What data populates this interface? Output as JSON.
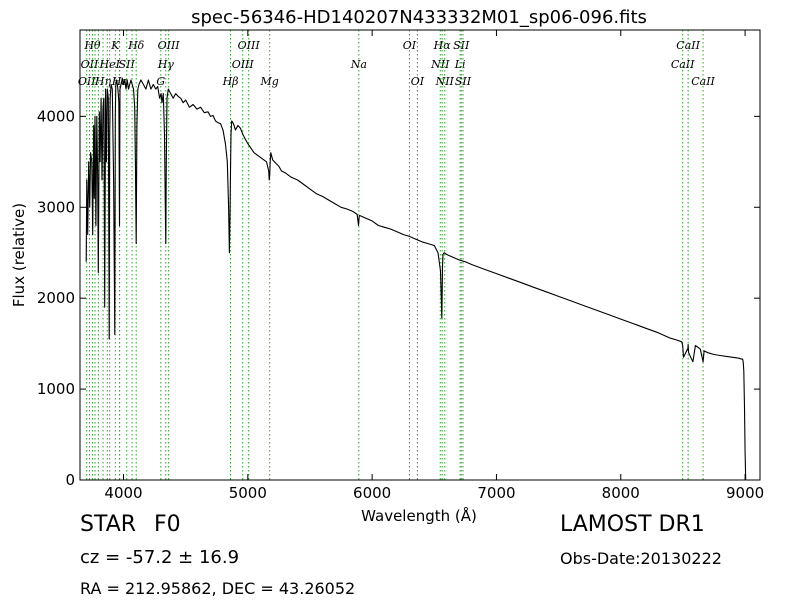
{
  "chart_data": {
    "type": "line",
    "title": "spec-56346-HD140207N433332M01_sp06-096.fits",
    "xlabel": "Wavelength (Å)",
    "ylabel": "Flux (relative)",
    "xlim": [
      3650,
      9120
    ],
    "ylim": [
      0,
      4950
    ],
    "xticks": [
      4000,
      5000,
      6000,
      7000,
      8000,
      9000
    ],
    "yticks": [
      0,
      1000,
      2000,
      3000,
      4000
    ],
    "grid": false,
    "line_color": "#000000",
    "marker_color": "#2ca02c",
    "series": [
      {
        "x": [
          3700,
          3705,
          3712,
          3720,
          3728,
          3735,
          3745,
          3752,
          3760,
          3765,
          3771,
          3778,
          3785,
          3792,
          3797,
          3805,
          3812,
          3820,
          3827,
          3835,
          3842,
          3849,
          3856,
          3862,
          3870,
          3878,
          3885,
          3889,
          3893,
          3900,
          3910,
          3920,
          3930,
          3934,
          3938,
          3945,
          3955,
          3963,
          3968,
          3972,
          3980,
          3990,
          4000,
          4010,
          4020,
          4030,
          4040,
          4050,
          4060,
          4070,
          4080,
          4090,
          4096,
          4102,
          4108,
          4115,
          4125,
          4140,
          4160,
          4180,
          4200,
          4220,
          4240,
          4260,
          4275,
          4290,
          4302,
          4310,
          4320,
          4330,
          4336,
          4340,
          4344,
          4350,
          4360,
          4380,
          4400,
          4420,
          4440,
          4460,
          4480,
          4500,
          4530,
          4560,
          4590,
          4620,
          4650,
          4680,
          4700,
          4720,
          4740,
          4760,
          4780,
          4800,
          4820,
          4835,
          4845,
          4852,
          4857,
          4861,
          4865,
          4870,
          4880,
          4890,
          4900,
          4920,
          4940,
          4960,
          4980,
          5000,
          5050,
          5100,
          5150,
          5168,
          5172,
          5176,
          5180,
          5185,
          5200,
          5250,
          5270,
          5300,
          5350,
          5400,
          5450,
          5500,
          5550,
          5600,
          5650,
          5700,
          5750,
          5800,
          5850,
          5880,
          5890,
          5896,
          5900,
          5950,
          6000,
          6050,
          6100,
          6150,
          6200,
          6250,
          6300,
          6350,
          6400,
          6450,
          6500,
          6530,
          6550,
          6556,
          6560,
          6563,
          6566,
          6570,
          6580,
          6600,
          6650,
          6700,
          6750,
          6800,
          6900,
          7000,
          7100,
          7200,
          7300,
          7400,
          7500,
          7600,
          7700,
          7800,
          7900,
          8000,
          8100,
          8200,
          8300,
          8400,
          8450,
          8490,
          8498,
          8505,
          8540,
          8542,
          8546,
          8580,
          8600,
          8640,
          8662,
          8670,
          8700,
          8750,
          8800,
          8850,
          8900,
          8950,
          8970,
          8980,
          8985,
          8990,
          8995,
          9000,
          9005
        ],
        "y": [
          2400,
          3300,
          2700,
          3500,
          3000,
          3600,
          3500,
          2700,
          3900,
          3100,
          4000,
          2800,
          4000,
          3300,
          2280,
          4050,
          3500,
          4200,
          3300,
          4100,
          4200,
          1900,
          4300,
          3500,
          4300,
          4200,
          1550,
          3800,
          4200,
          4350,
          4300,
          3300,
          1600,
          4000,
          4350,
          4400,
          4300,
          4150,
          2800,
          4300,
          4350,
          4420,
          4350,
          4400,
          4300,
          4400,
          4300,
          4350,
          4400,
          4350,
          4300,
          4100,
          3500,
          2600,
          3900,
          4300,
          4350,
          4400,
          4350,
          4300,
          4400,
          4300,
          4350,
          4300,
          4330,
          4200,
          4250,
          4150,
          4250,
          3800,
          3000,
          2600,
          3500,
          4200,
          4300,
          4250,
          4200,
          4250,
          4220,
          4200,
          4150,
          4180,
          4100,
          4130,
          4080,
          4100,
          4040,
          4050,
          4000,
          4010,
          3950,
          3930,
          3920,
          3850,
          3700,
          3500,
          3000,
          2500,
          2900,
          3400,
          3800,
          3950,
          3930,
          3900,
          3850,
          3900,
          3870,
          3800,
          3750,
          3700,
          3600,
          3550,
          3500,
          3400,
          3300,
          3350,
          3500,
          3600,
          3520,
          3450,
          3400,
          3380,
          3330,
          3300,
          3250,
          3200,
          3150,
          3120,
          3080,
          3040,
          3000,
          2980,
          2950,
          2920,
          2800,
          2900,
          2910,
          2880,
          2850,
          2800,
          2780,
          2760,
          2730,
          2700,
          2680,
          2650,
          2620,
          2600,
          2580,
          2500,
          2300,
          2000,
          1780,
          2000,
          2350,
          2480,
          2500,
          2480,
          2450,
          2420,
          2400,
          2370,
          2320,
          2270,
          2220,
          2170,
          2120,
          2070,
          2020,
          1970,
          1920,
          1870,
          1820,
          1770,
          1720,
          1670,
          1620,
          1560,
          1540,
          1520,
          1480,
          1350,
          1450,
          1490,
          1400,
          1300,
          1480,
          1440,
          1300,
          1420,
          1400,
          1380,
          1370,
          1360,
          1350,
          1340,
          1330,
          1330,
          1300,
          1200,
          800,
          300,
          0
        ]
      }
    ],
    "line_markers": [
      {
        "x": 3704,
        "label": "OII",
        "row": 2
      },
      {
        "x": 3726,
        "label": "OII",
        "row": 1
      },
      {
        "x": 3750,
        "label": "Hθ",
        "row": 0
      },
      {
        "x": 3771,
        "label": "",
        "row": 0
      },
      {
        "x": 3798,
        "label": "",
        "row": 0
      },
      {
        "x": 3835,
        "label": "Hη",
        "row": 2
      },
      {
        "x": 3869,
        "label": "",
        "row": 1
      },
      {
        "x": 3889,
        "label": "HeI",
        "row": 1
      },
      {
        "x": 3934,
        "label": "K",
        "row": 0
      },
      {
        "x": 3968,
        "label": "",
        "row": 0
      },
      {
        "x": 3969,
        "label": "Hε",
        "row": 2
      },
      {
        "x": 4026,
        "label": "SII",
        "row": 1
      },
      {
        "x": 4069,
        "label": "",
        "row": 1
      },
      {
        "x": 4102,
        "label": "Hδ",
        "row": 0
      },
      {
        "x": 4300,
        "label": "G",
        "row": 2
      },
      {
        "x": 4340,
        "label": "Hγ",
        "row": 1
      },
      {
        "x": 4363,
        "label": "OIII",
        "row": 0
      },
      {
        "x": 4861,
        "label": "Hβ",
        "row": 2
      },
      {
        "x": 4959,
        "label": "OIII",
        "row": 1
      },
      {
        "x": 5007,
        "label": "OIII",
        "row": 0
      },
      {
        "x": 5176,
        "label": "Mg",
        "row": 2
      },
      {
        "x": 5893,
        "label": "Na",
        "row": 1
      },
      {
        "x": 6300,
        "label": "OI",
        "row": 0
      },
      {
        "x": 6364,
        "label": "OI",
        "row": 2
      },
      {
        "x": 6548,
        "label": "NII",
        "row": 1
      },
      {
        "x": 6563,
        "label": "Hα",
        "row": 0
      },
      {
        "x": 6584,
        "label": "NII",
        "row": 2
      },
      {
        "x": 6708,
        "label": "Li",
        "row": 1
      },
      {
        "x": 6717,
        "label": "SII",
        "row": 0
      },
      {
        "x": 6731,
        "label": "SII",
        "row": 2
      },
      {
        "x": 8498,
        "label": "CaII",
        "row": 1
      },
      {
        "x": 8542,
        "label": "CaII",
        "row": 0
      },
      {
        "x": 8662,
        "label": "CaII",
        "row": 2
      }
    ]
  },
  "info": {
    "object_class": "STAR",
    "subclass": "F0",
    "survey": "LAMOST DR1",
    "cz": "cz = -57.2  ± 16.9",
    "obs_date": "Obs-Date:20130222",
    "ra_dec": "RA = 212.95862, DEC = 43.26052"
  }
}
